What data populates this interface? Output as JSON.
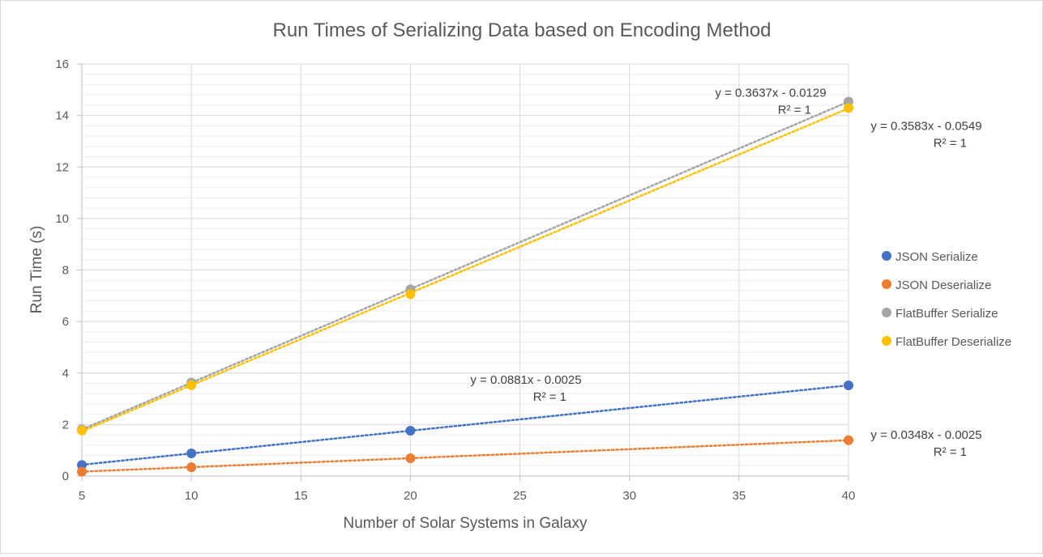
{
  "chart_data": {
    "type": "scatter",
    "title": "Run Times of Serializing Data based on Encoding Method",
    "xlabel": "Number of Solar Systems in Galaxy",
    "ylabel": "Run Time (s)",
    "xlim": [
      5,
      40
    ],
    "ylim": [
      0,
      16
    ],
    "x_ticks": [
      "5",
      "10",
      "15",
      "20",
      "25",
      "30",
      "35",
      "40"
    ],
    "y_ticks": [
      "0",
      "2",
      "4",
      "6",
      "8",
      "10",
      "12",
      "14",
      "16"
    ],
    "grid": true,
    "legend_position": "right",
    "x": [
      5,
      10,
      20,
      40
    ],
    "series": [
      {
        "name": "JSON Serialize",
        "color": "#4472C4",
        "values": [
          0.43,
          0.88,
          1.76,
          3.52
        ],
        "trendline": {
          "slope": 0.0881,
          "intercept": -0.0025,
          "equation": "y = 0.0881x - 0.0025",
          "r2": "R² = 1"
        }
      },
      {
        "name": "JSON Deserialize",
        "color": "#ED7D31",
        "values": [
          0.17,
          0.34,
          0.69,
          1.39
        ],
        "trendline": {
          "slope": 0.0348,
          "intercept": -0.0025,
          "equation": "y = 0.0348x - 0.0025",
          "r2": "R² = 1"
        }
      },
      {
        "name": "FlatBuffer Serialize",
        "color": "#A5A5A5",
        "values": [
          1.81,
          3.63,
          7.25,
          14.54
        ],
        "trendline": {
          "slope": 0.3637,
          "intercept": -0.0129,
          "equation": "y = 0.3637x - 0.0129",
          "r2": "R² = 1"
        }
      },
      {
        "name": "FlatBuffer Deserialize",
        "color": "#FFC000",
        "values": [
          1.77,
          3.53,
          7.06,
          14.29
        ],
        "trendline": {
          "slope": 0.3583,
          "intercept": -0.0549,
          "equation": "y = 0.3583x - 0.0549",
          "r2": "R² = 1"
        }
      }
    ]
  }
}
